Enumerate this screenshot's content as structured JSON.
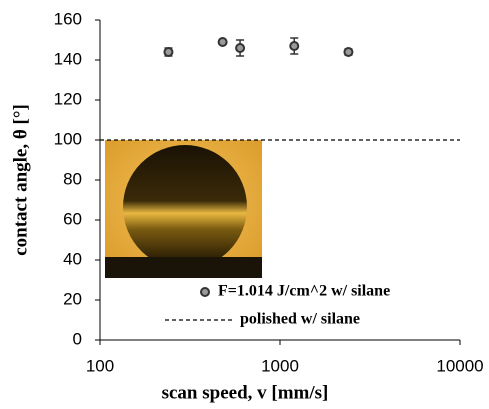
{
  "chart_data": {
    "type": "scatter",
    "xlabel": "scan speed, v [mm/s]",
    "ylabel": "contact angle, θ [°]",
    "xscale": "log",
    "xlim": [
      100,
      10000
    ],
    "xticks": [
      100,
      1000,
      10000
    ],
    "ylim": [
      0,
      160
    ],
    "yticks": [
      0,
      20,
      40,
      60,
      80,
      100,
      120,
      140,
      160
    ],
    "series": [
      {
        "name": "F=1.014 J/cm^2 w/ silane",
        "color": "#333333",
        "x": [
          240,
          480,
          600,
          1200,
          2400
        ],
        "values": [
          144,
          149,
          146,
          147,
          144
        ],
        "errors": [
          2,
          1,
          4,
          4,
          1.5
        ]
      }
    ],
    "reference_lines": [
      {
        "name": "polished w/ silane",
        "value": 100,
        "color": "#000000"
      }
    ]
  }
}
